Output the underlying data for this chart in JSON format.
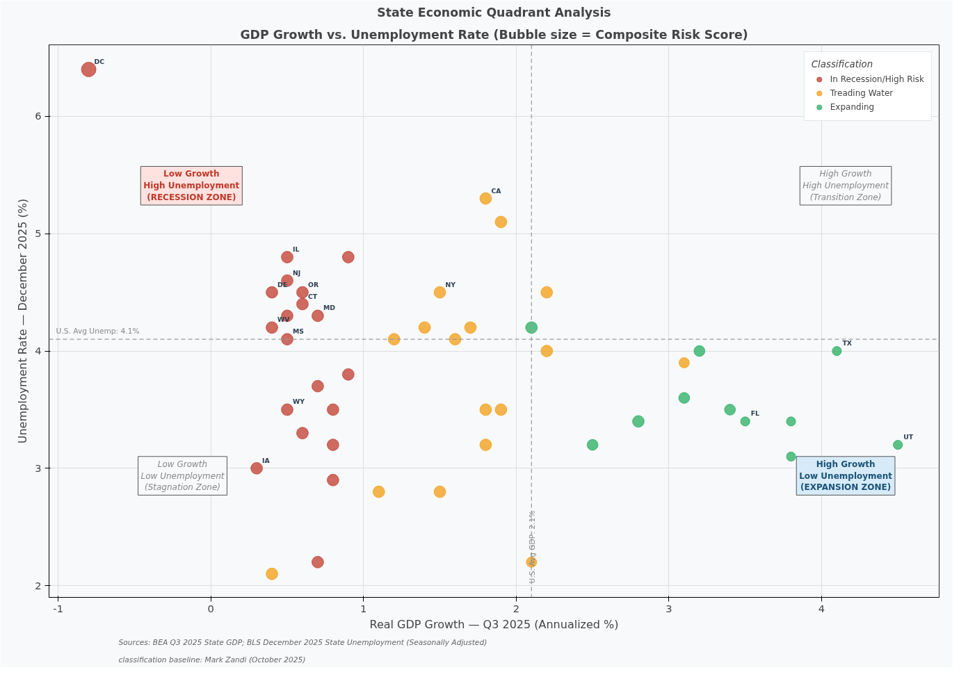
{
  "chart_data": {
    "type": "bubble",
    "title": "State Economic Quadrant Analysis",
    "subtitle": "GDP Growth vs. Unemployment Rate (Bubble size = Composite Risk Score)",
    "xlabel": "Real GDP Growth — Q3 2025 (Annualized %)",
    "ylabel": "Unemployment Rate — December 2025 (%)",
    "legend_title": "Classification",
    "xlim": [
      -1.06,
      4.77
    ],
    "ylim": [
      1.9,
      6.61
    ],
    "xticks": [
      -1,
      0,
      1,
      2,
      3,
      4
    ],
    "yticks": [
      2,
      3,
      4,
      5,
      6
    ],
    "grid": true,
    "legend": "top right",
    "marker": "circle",
    "series": [
      {
        "name": "In Recession/High Risk",
        "color": "#c0392b",
        "x": [
          -0.8,
          0.5,
          0.9,
          0.5,
          0.4,
          0.6,
          0.6,
          0.7,
          0.5,
          0.4,
          0.5,
          0.9,
          0.7,
          0.5,
          0.8,
          0.6,
          0.8,
          0.3,
          0.8,
          0.7
        ],
        "values": [
          6.4,
          4.8,
          4.8,
          4.6,
          4.5,
          4.5,
          4.4,
          4.3,
          4.3,
          4.2,
          4.1,
          3.8,
          3.7,
          3.5,
          3.5,
          3.3,
          3.2,
          3.0,
          2.9,
          2.2
        ],
        "sizes": [
          1,
          0.64,
          0.64,
          0.64,
          0.64,
          0.64,
          0.64,
          0.64,
          0.64,
          0.64,
          0.64,
          0.64,
          0.64,
          0.64,
          0.64,
          0.64,
          0.64,
          0.64,
          0.64,
          0.64
        ]
      },
      {
        "name": "Treading Water",
        "color": "#f39c12",
        "x": [
          1.8,
          1.9,
          1.5,
          2.2,
          1.4,
          1.7,
          1.2,
          1.6,
          2.2,
          3.1,
          1.8,
          1.9,
          1.8,
          1.1,
          1.5,
          2.1,
          0.4
        ],
        "values": [
          5.3,
          5.1,
          4.5,
          4.5,
          4.2,
          4.2,
          4.1,
          4.1,
          4.0,
          3.9,
          3.5,
          3.5,
          3.2,
          2.8,
          2.8,
          2.2,
          2.1
        ],
        "sizes": [
          0.64,
          0.64,
          0.64,
          0.64,
          0.64,
          0.64,
          0.64,
          0.64,
          0.64,
          0.5,
          0.64,
          0.64,
          0.64,
          0.64,
          0.64,
          0.5,
          0.64
        ]
      },
      {
        "name": "Expanding",
        "color": "#27ae60",
        "x": [
          2.1,
          3.2,
          4.1,
          3.1,
          3.4,
          3.5,
          3.8,
          2.8,
          2.5,
          4.5,
          3.8
        ],
        "values": [
          4.2,
          4.0,
          4.0,
          3.6,
          3.5,
          3.4,
          3.4,
          3.4,
          3.2,
          3.2,
          3.1
        ],
        "sizes": [
          0.64,
          0.56,
          0.4,
          0.56,
          0.56,
          0.4,
          0.4,
          0.64,
          0.56,
          0.4,
          0.4
        ]
      }
    ],
    "ref_lines": [
      {
        "axis": "x",
        "value": 2.1,
        "label": "U.S. Avg GDP: 2.1%",
        "color": "#999999",
        "line_style": "dashed"
      },
      {
        "axis": "y",
        "value": 4.1,
        "label": "U.S. Avg Unemp: 4.1%",
        "color": "#999999",
        "line_style": "dashed"
      }
    ],
    "annotations": [
      {
        "text": "DC",
        "x": -0.8,
        "y": 6.4
      },
      {
        "text": "IL",
        "x": 0.5,
        "y": 4.8
      },
      {
        "text": "NJ",
        "x": 0.5,
        "y": 4.6
      },
      {
        "text": "DE",
        "x": 0.4,
        "y": 4.5
      },
      {
        "text": "OR",
        "x": 0.6,
        "y": 4.5
      },
      {
        "text": "CT",
        "x": 0.6,
        "y": 4.4
      },
      {
        "text": "MD",
        "x": 0.7,
        "y": 4.3
      },
      {
        "text": "WV",
        "x": 0.4,
        "y": 4.2
      },
      {
        "text": "MS",
        "x": 0.5,
        "y": 4.1
      },
      {
        "text": "WY",
        "x": 0.5,
        "y": 3.5
      },
      {
        "text": "IA",
        "x": 0.3,
        "y": 3.0
      },
      {
        "text": "CA",
        "x": 1.8,
        "y": 5.3
      },
      {
        "text": "NY",
        "x": 1.5,
        "y": 4.5
      },
      {
        "text": "TX",
        "x": 4.1,
        "y": 4.0
      },
      {
        "text": "FL",
        "x": 3.5,
        "y": 3.4
      },
      {
        "text": "UT",
        "x": 4.5,
        "y": 3.2
      },
      "Low Growth\nHigh Unemployment\n(RECESSION ZONE)",
      "High Growth\nHigh Unemployment\n(Transition Zone)",
      "Low Growth\nLow Unemployment\n(Stagnation Zone)",
      "High Growth\nLow Unemployment\n(EXPANSION ZONE)",
      "Sources: BEA Q3 2025 State GDP; BLS December 2025 State Unemployment (Seasonally Adjusted)\nclassification baseline: Mark Zandi (October 2025)"
    ]
  }
}
